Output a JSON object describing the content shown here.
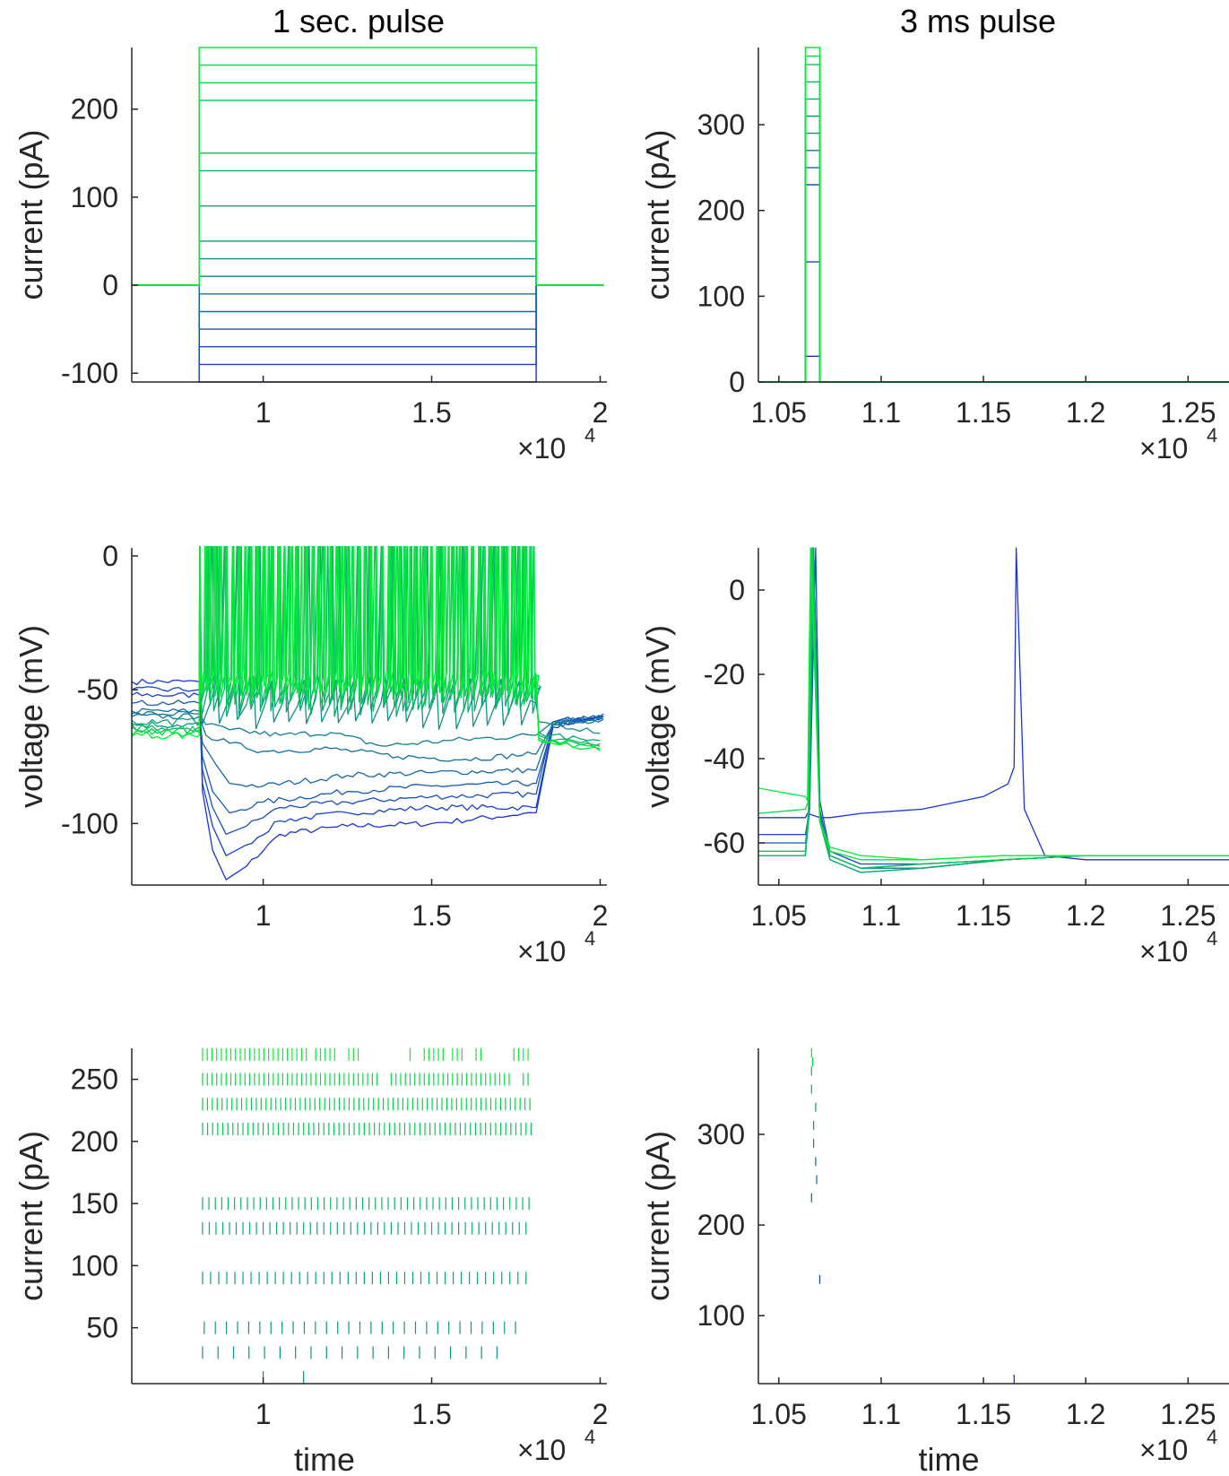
{
  "colors": {
    "axis": "#262626",
    "low": "#1a35d6",
    "high": "#00ee33"
  },
  "columns": [
    {
      "title": "1 sec. pulse"
    },
    {
      "title": "3 ms pulse"
    }
  ],
  "chart_data": [
    {
      "id": "step-current-long",
      "type": "line",
      "xlabel": "",
      "ylabel": "current (pA)",
      "xlim": [
        6100,
        20200
      ],
      "ylim": [
        -110,
        270
      ],
      "x_ticks": [
        10000,
        15000,
        20000
      ],
      "x_tick_labels": [
        "1",
        "1.5",
        "2"
      ],
      "y_ticks": [
        -100,
        0,
        100,
        200
      ],
      "y_tick_labels": [
        "-100",
        "0",
        "100",
        "200"
      ],
      "x_exponent": "4",
      "pulse": {
        "baseline": 0,
        "on": 8100,
        "off": 18100,
        "x_start": 6100,
        "x_end": 20100
      },
      "amplitudes": [
        -110,
        -90,
        -70,
        -50,
        -30,
        -10,
        10,
        30,
        50,
        90,
        130,
        150,
        210,
        230,
        250,
        270
      ]
    },
    {
      "id": "step-current-short",
      "type": "line",
      "xlabel": "",
      "ylabel": "current (pA)",
      "xlim": [
        10400,
        12700
      ],
      "ylim": [
        0,
        390
      ],
      "x_ticks": [
        10500,
        11000,
        11500,
        12000,
        12500
      ],
      "x_tick_labels": [
        "1.05",
        "1.1",
        "1.15",
        "1.2",
        "1.25"
      ],
      "y_ticks": [
        0,
        100,
        200,
        300
      ],
      "y_tick_labels": [
        "0",
        "100",
        "200",
        "300"
      ],
      "x_exponent": "4",
      "pulse": {
        "baseline": 0,
        "on": 10630,
        "off": 10700,
        "x_start": 10400,
        "x_end": 12700
      },
      "amplitudes": [
        30,
        140,
        230,
        250,
        270,
        290,
        310,
        330,
        350,
        370,
        380,
        390
      ]
    },
    {
      "id": "voltage-long",
      "type": "line",
      "xlabel": "",
      "ylabel": "voltage (mV)",
      "xlim": [
        6100,
        20200
      ],
      "ylim": [
        -123,
        3
      ],
      "x_ticks": [
        10000,
        15000,
        20000
      ],
      "x_tick_labels": [
        "1",
        "1.5",
        "2"
      ],
      "y_ticks": [
        -100,
        -50,
        0
      ],
      "y_tick_labels": [
        "-100",
        "-50",
        "0"
      ],
      "x_exponent": "4",
      "series": [
        {
          "t": 0.0,
          "x": [
            6100,
            8100,
            8200,
            8500,
            8900,
            9500,
            10500,
            12500,
            15000,
            18000,
            18100,
            18600,
            20100
          ],
          "y": [
            -47,
            -47,
            -88,
            -110,
            -121,
            -116,
            -104,
            -101,
            -100,
            -96,
            -96,
            -64,
            -60
          ]
        },
        {
          "t": 0.07,
          "x": [
            6100,
            8100,
            8200,
            8500,
            8900,
            9500,
            10500,
            12500,
            15000,
            18000,
            18100,
            18600,
            20100
          ],
          "y": [
            -52,
            -52,
            -85,
            -101,
            -112,
            -108,
            -99,
            -96,
            -94,
            -94,
            -94,
            -63,
            -60
          ]
        },
        {
          "t": 0.13,
          "x": [
            6100,
            8100,
            8200,
            8500,
            8900,
            9500,
            10500,
            12500,
            15000,
            18000,
            18100,
            18600,
            20100
          ],
          "y": [
            -50,
            -50,
            -80,
            -94,
            -104,
            -101,
            -94,
            -92,
            -90,
            -89,
            -89,
            -62,
            -59
          ]
        },
        {
          "t": 0.2,
          "x": [
            6100,
            8100,
            8200,
            8500,
            9000,
            10000,
            12500,
            15000,
            18000,
            18100,
            18600,
            20100
          ],
          "y": [
            -55,
            -55,
            -75,
            -88,
            -96,
            -92,
            -88,
            -86,
            -85,
            -85,
            -63,
            -60
          ]
        },
        {
          "t": 0.27,
          "x": [
            6100,
            8100,
            8200,
            8600,
            9000,
            10000,
            12500,
            15000,
            18000,
            18100,
            18600,
            20100
          ],
          "y": [
            -58,
            -58,
            -70,
            -78,
            -85,
            -86,
            -82,
            -81,
            -80,
            -80,
            -62,
            -60
          ]
        },
        {
          "t": 0.33,
          "x": [
            6100,
            8100,
            8300,
            9000,
            10000,
            12000,
            14000,
            16000,
            18000,
            18100,
            18600,
            20100
          ],
          "y": [
            -60,
            -60,
            -67,
            -70,
            -73,
            -72,
            -75,
            -76,
            -74,
            -74,
            -63,
            -61
          ]
        },
        {
          "t": 0.4,
          "x": [
            6100,
            8100,
            8300,
            9000,
            10500,
            12000,
            13500,
            15500,
            18000,
            18100,
            18600,
            20100
          ],
          "y": [
            -59,
            -59,
            -63,
            -65,
            -67,
            -66,
            -71,
            -69,
            -67,
            -67,
            -62,
            -61
          ]
        },
        {
          "t": 0.5,
          "x": [
            6100,
            8100,
            20100
          ],
          "y": [
            -63,
            -63,
            -63
          ],
          "spike_train": {
            "start": 8100,
            "end": 18100,
            "isi": 480,
            "rest": -55,
            "trough": -63,
            "peak": -45
          },
          "post": [
            -62,
            -66
          ]
        },
        {
          "t": 0.6,
          "x": [
            6100,
            8100,
            20100
          ],
          "y": [
            -62,
            -62,
            -62
          ],
          "spike_train": {
            "start": 8100,
            "end": 18100,
            "isi": 360,
            "rest": -50,
            "trough": -58,
            "peak": 12
          },
          "post": [
            -66,
            -70
          ]
        },
        {
          "t": 0.7,
          "x": [
            6100,
            8100,
            20100
          ],
          "y": [
            -64,
            -64,
            -64
          ],
          "spike_train": {
            "start": 8100,
            "end": 18100,
            "isi": 300,
            "rest": -48,
            "trough": -56,
            "peak": 15
          },
          "post": [
            -67,
            -71
          ]
        },
        {
          "t": 0.8,
          "x": [
            6100,
            8100,
            20100
          ],
          "y": [
            -65,
            -65,
            -65
          ],
          "spike_train": {
            "start": 8100,
            "end": 18100,
            "isi": 240,
            "rest": -46,
            "trough": -54,
            "peak": 17
          },
          "post": [
            -68,
            -72
          ]
        },
        {
          "t": 0.9,
          "x": [
            6100,
            8100,
            20100
          ],
          "y": [
            -66,
            -66,
            -66
          ],
          "spike_train": {
            "start": 8100,
            "end": 18100,
            "isi": 200,
            "rest": -45,
            "trough": -52,
            "peak": 18
          },
          "post": [
            -69,
            -72
          ]
        },
        {
          "t": 1.0,
          "x": [
            6100,
            8100,
            20100
          ],
          "y": [
            -67,
            -67,
            -67
          ],
          "spike_train": {
            "start": 8100,
            "end": 18100,
            "isi": 170,
            "rest": -44,
            "trough": -50,
            "peak": 19
          },
          "post": [
            -69,
            -73
          ]
        }
      ]
    },
    {
      "id": "voltage-short",
      "type": "line",
      "xlabel": "",
      "ylabel": "voltage (mV)",
      "xlim": [
        10400,
        12700
      ],
      "ylim": [
        -70,
        10
      ],
      "x_ticks": [
        10500,
        11000,
        11500,
        12000,
        12500
      ],
      "x_tick_labels": [
        "1.05",
        "1.1",
        "1.15",
        "1.2",
        "1.25"
      ],
      "y_ticks": [
        -60,
        -40,
        -20,
        0
      ],
      "y_tick_labels": [
        "-60",
        "-40",
        "-20",
        "0"
      ],
      "x_exponent": "4",
      "series": [
        {
          "t": 0.0,
          "x": [
            10400,
            10630,
            10640,
            10700,
            10750,
            10900,
            11200,
            11500,
            11620,
            11650,
            11660,
            11700,
            11800,
            12000,
            12700
          ],
          "y": [
            -54,
            -54,
            -53,
            -54,
            -54,
            -53,
            -52,
            -49,
            -46,
            -42,
            10,
            -52,
            -63,
            -64,
            -64
          ]
        },
        {
          "t": 0.1,
          "x": [
            10400,
            10630,
            10650,
            10680,
            10700,
            10750,
            10900,
            11200,
            11600,
            12000,
            12700
          ],
          "y": [
            -58,
            -58,
            -52,
            10,
            -50,
            -62,
            -65,
            -65,
            -64,
            -63,
            -63
          ]
        },
        {
          "t": 0.2,
          "x": [
            10400,
            10630,
            10650,
            10670,
            10700,
            10750,
            10900,
            11200,
            11600,
            12000,
            12700
          ],
          "y": [
            -60,
            -60,
            -52,
            10,
            -52,
            -63,
            -66,
            -65,
            -64,
            -63,
            -63
          ]
        },
        {
          "t": 0.35,
          "x": [
            10400,
            10630,
            10650,
            10670,
            10700,
            10750,
            10900,
            11200,
            11600,
            12000,
            12700
          ],
          "y": [
            -62,
            -62,
            -52,
            10,
            -53,
            -63,
            -66,
            -66,
            -64,
            -63,
            -63
          ]
        },
        {
          "t": 0.5,
          "x": [
            10400,
            10630,
            10650,
            10670,
            10700,
            10750,
            10900,
            11200,
            11600,
            12000,
            12700
          ],
          "y": [
            -63,
            -63,
            -52,
            10,
            -54,
            -64,
            -67,
            -66,
            -64,
            -63,
            -63
          ]
        },
        {
          "t": 0.65,
          "x": [
            10400,
            10630,
            10645,
            10665,
            10700,
            10750,
            10900,
            11200,
            11600,
            12000,
            12700
          ],
          "y": [
            -63,
            -63,
            -52,
            10,
            -55,
            -64,
            -67,
            -66,
            -64,
            -63,
            -63
          ]
        },
        {
          "t": 0.8,
          "x": [
            10400,
            10630,
            10645,
            10665,
            10700,
            10750,
            10900,
            11200,
            11600,
            12000,
            12700
          ],
          "y": [
            -62,
            -62,
            -52,
            10,
            -55,
            -63,
            -66,
            -65,
            -64,
            -63,
            -63
          ]
        },
        {
          "t": 0.9,
          "x": [
            10400,
            10630,
            10645,
            10660,
            10700,
            10750,
            10900,
            11200,
            11600,
            12000,
            12700
          ],
          "y": [
            -53,
            -52,
            -50,
            10,
            -55,
            -62,
            -64,
            -64,
            -63,
            -63,
            -63
          ]
        },
        {
          "t": 1.0,
          "x": [
            10400,
            10630,
            10640,
            10655,
            10700,
            10750,
            10900,
            11200,
            11600,
            12000,
            12700
          ],
          "y": [
            -47,
            -49,
            -50,
            10,
            -55,
            -61,
            -63,
            -64,
            -63,
            -63,
            -63
          ]
        }
      ]
    },
    {
      "id": "raster-long",
      "type": "scatter",
      "xlabel": "time",
      "ylabel": "current (pA)",
      "xlim": [
        6100,
        20200
      ],
      "ylim": [
        5,
        275
      ],
      "x_ticks": [
        10000,
        15000,
        20000
      ],
      "x_tick_labels": [
        "1",
        "1.5",
        "2"
      ],
      "y_ticks": [
        50,
        100,
        150,
        200,
        250
      ],
      "y_tick_labels": [
        "50",
        "100",
        "150",
        "200",
        "250"
      ],
      "x_exponent": "4",
      "rows": [
        {
          "current": 10,
          "t": 0.45,
          "times": [
            10000,
            11200
          ]
        },
        {
          "current": 30,
          "t": 0.5,
          "isi": 460,
          "start": 8200,
          "end": 17100
        },
        {
          "current": 50,
          "t": 0.55,
          "isi": 330,
          "start": 8250,
          "end": 17600
        },
        {
          "current": 90,
          "t": 0.6,
          "isi": 240,
          "start": 8200,
          "end": 17800
        },
        {
          "current": 130,
          "t": 0.65,
          "isi": 200,
          "start": 8200,
          "end": 17900
        },
        {
          "current": 150,
          "t": 0.7,
          "isi": 190,
          "start": 8200,
          "end": 17900
        },
        {
          "current": 210,
          "t": 0.8,
          "isi": 150,
          "start": 8200,
          "end": 17950
        },
        {
          "current": 230,
          "t": 0.85,
          "isi": 145,
          "start": 8200,
          "end": 17950
        },
        {
          "current": 250,
          "t": 0.9,
          "isi": 140,
          "start": 8200,
          "end": 17950,
          "gaps": [
            [
              13400,
              13750
            ],
            [
              17400,
              17600
            ]
          ]
        },
        {
          "current": 270,
          "t": 1.0,
          "isi": 140,
          "start": 8200,
          "end": 17950,
          "gaps": [
            [
              11300,
              11450
            ],
            [
              12250,
              12450
            ],
            [
              12950,
              13550
            ],
            [
              13650,
              14250
            ],
            [
              14450,
              14650
            ],
            [
              15400,
              15600
            ],
            [
              16000,
              16250
            ],
            [
              16500,
              17400
            ]
          ]
        }
      ]
    },
    {
      "id": "raster-short",
      "type": "scatter",
      "xlabel": "time",
      "ylabel": "current (pA)",
      "xlim": [
        10400,
        12700
      ],
      "ylim": [
        25,
        395
      ],
      "x_ticks": [
        10500,
        11000,
        11500,
        12000,
        12500
      ],
      "x_tick_labels": [
        "1.05",
        "1.1",
        "1.15",
        "1.2",
        "1.25"
      ],
      "y_ticks": [
        100,
        200,
        300
      ],
      "y_tick_labels": [
        "100",
        "200",
        "300"
      ],
      "x_exponent": "4",
      "points": [
        {
          "current": 30,
          "t": 0.0,
          "time": 11650
        },
        {
          "current": 140,
          "t": 0.1,
          "time": 10700
        },
        {
          "current": 230,
          "t": 0.3,
          "time": 10660
        },
        {
          "current": 250,
          "t": 0.35,
          "time": 10685
        },
        {
          "current": 270,
          "t": 0.4,
          "time": 10680
        },
        {
          "current": 290,
          "t": 0.5,
          "time": 10670
        },
        {
          "current": 310,
          "t": 0.6,
          "time": 10670
        },
        {
          "current": 330,
          "t": 0.65,
          "time": 10680
        },
        {
          "current": 350,
          "t": 0.75,
          "time": 10660
        },
        {
          "current": 370,
          "t": 0.85,
          "time": 10660
        },
        {
          "current": 380,
          "t": 0.9,
          "time": 10665
        },
        {
          "current": 390,
          "t": 1.0,
          "time": 10660
        }
      ]
    }
  ]
}
